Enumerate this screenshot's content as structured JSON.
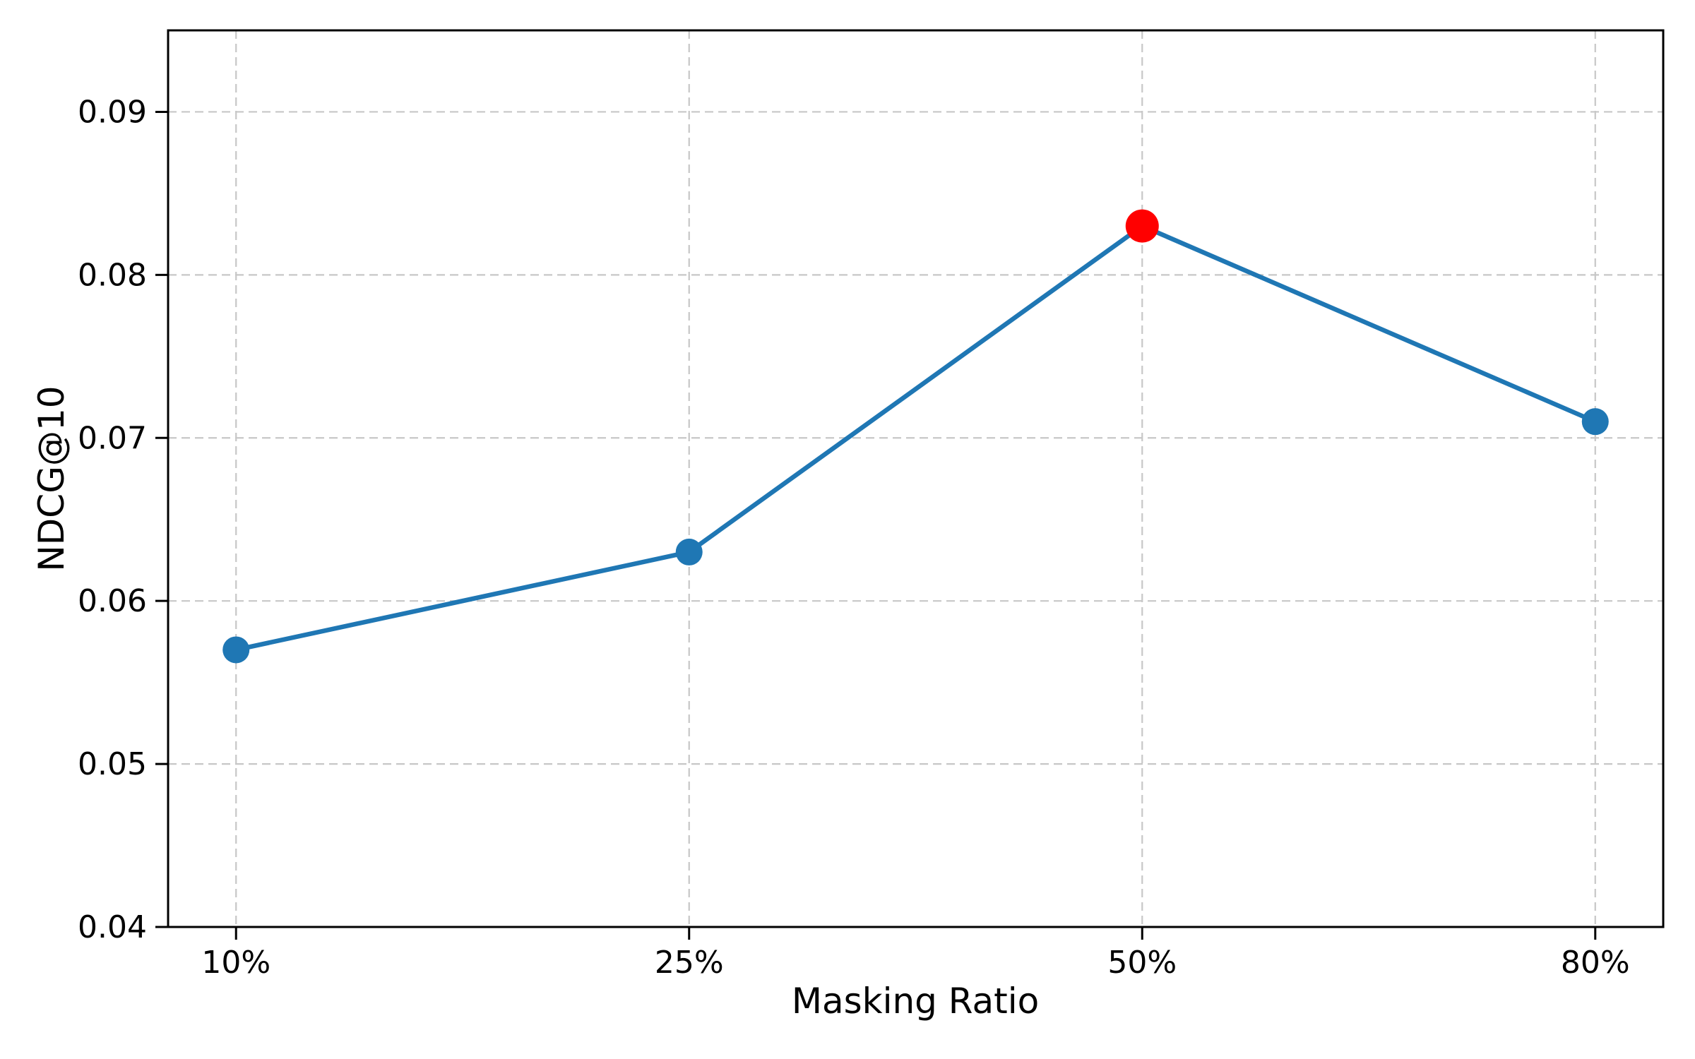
{
  "figure": {
    "background": "#ffffff"
  },
  "chart_data": {
    "type": "line",
    "title": "",
    "xlabel": "Masking Ratio",
    "ylabel": "NDCG@10",
    "categories": [
      "10%",
      "25%",
      "50%",
      "80%"
    ],
    "values": [
      0.057,
      0.063,
      0.083,
      0.071
    ],
    "highlight": {
      "index": 2,
      "category": "50%",
      "value": 0.083,
      "color": "#ff0000"
    },
    "line_color": "#1f77b4",
    "marker_color": "#1f77b4",
    "ylim": [
      0.04,
      0.095
    ],
    "yticks": [
      0.04,
      0.05,
      0.06,
      0.07,
      0.08,
      0.09
    ],
    "ytick_labels": [
      "0.04",
      "0.05",
      "0.06",
      "0.07",
      "0.08",
      "0.09"
    ],
    "xtick_labels": [
      "10%",
      "25%",
      "50%",
      "80%"
    ],
    "grid": true,
    "grid_color": "#c7c7c7",
    "grid_style": "dashed",
    "legend_position": "none"
  }
}
